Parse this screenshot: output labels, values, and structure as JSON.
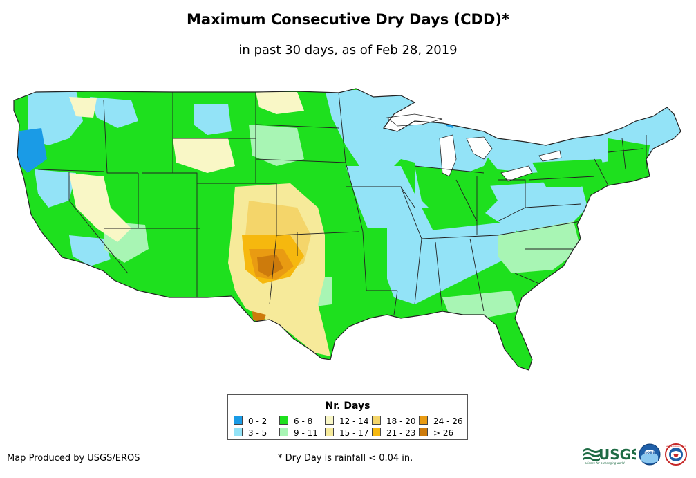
{
  "title": "Maximum Consecutive Dry Days (CDD)*",
  "subtitle": "in past 30 days, as of Feb 28, 2019",
  "legend": {
    "title": "Nr. Days",
    "items": [
      {
        "label": "0 - 2",
        "color": "#1a9be6"
      },
      {
        "label": "3 - 5",
        "color": "#93e3f7"
      },
      {
        "label": "6 - 8",
        "color": "#1ee01e"
      },
      {
        "label": "9 - 11",
        "color": "#a8f5b4"
      },
      {
        "label": "12 - 14",
        "color": "#f9f7c6"
      },
      {
        "label": "15 - 17",
        "color": "#f6ea9a"
      },
      {
        "label": "18 - 20",
        "color": "#f4d56a"
      },
      {
        "label": "21 - 23",
        "color": "#f6b80e"
      },
      {
        "label": "24 - 26",
        "color": "#e99b12"
      },
      {
        "label": "> 26",
        "color": "#cd7b0c"
      }
    ]
  },
  "credit": "Map Produced by USGS/EROS",
  "footnote": "* Dry Day is rainfall < 0.04 in.",
  "logos": {
    "usgs_text": "USGS",
    "usgs_tagline": "science for a changing world",
    "noaa": "noaa",
    "nws": "NATIONAL WEATHER SERVICE"
  },
  "colors": {
    "state_border": "#222222",
    "water": "#ffffff"
  }
}
